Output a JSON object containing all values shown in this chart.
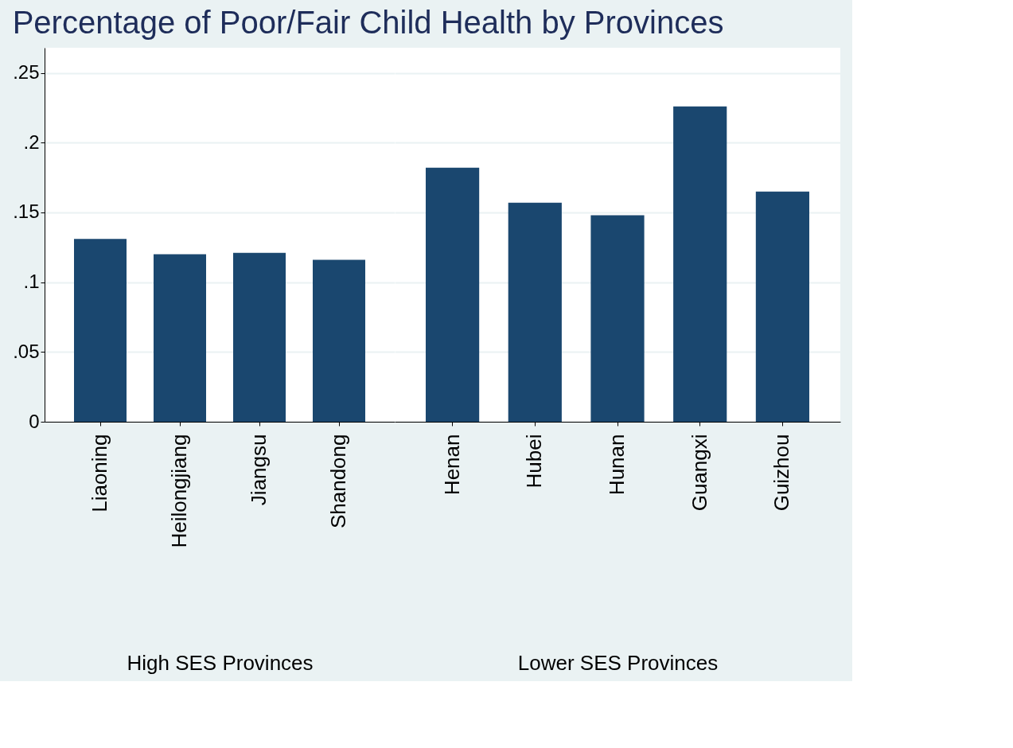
{
  "chart_data": [
    {
      "type": "bar",
      "title": "Percentage of Poor/Fair Child Health by Provinces",
      "xlabel": "High SES Provinces",
      "categories": [
        "Liaoning",
        "Heilongjiang",
        "Jiangsu",
        "Shandong"
      ],
      "values": [
        0.131,
        0.12,
        0.121,
        0.116
      ],
      "color": "#1a476f",
      "ylim": [
        0,
        0.268
      ],
      "yticks": [
        {
          "value": 0,
          "label": "0"
        },
        {
          "value": 0.05,
          "label": ".05"
        },
        {
          "value": 0.1,
          "label": ".1"
        },
        {
          "value": 0.15,
          "label": ".15"
        },
        {
          "value": 0.2,
          "label": ".2"
        },
        {
          "value": 0.25,
          "label": ".25"
        }
      ],
      "grid": "y"
    },
    {
      "type": "bar",
      "xlabel": "Lower SES Provinces",
      "categories": [
        "Henan",
        "Hubei",
        "Hunan",
        "Guangxi",
        "Guizhou"
      ],
      "values": [
        0.182,
        0.157,
        0.148,
        0.226,
        0.165
      ],
      "color": "#1a476f",
      "ylim": [
        0,
        0.268
      ],
      "yticks": [
        0,
        0.05,
        0.1,
        0.15,
        0.2,
        0.25
      ],
      "grid": "y",
      "tick_labels": "x"
    }
  ]
}
